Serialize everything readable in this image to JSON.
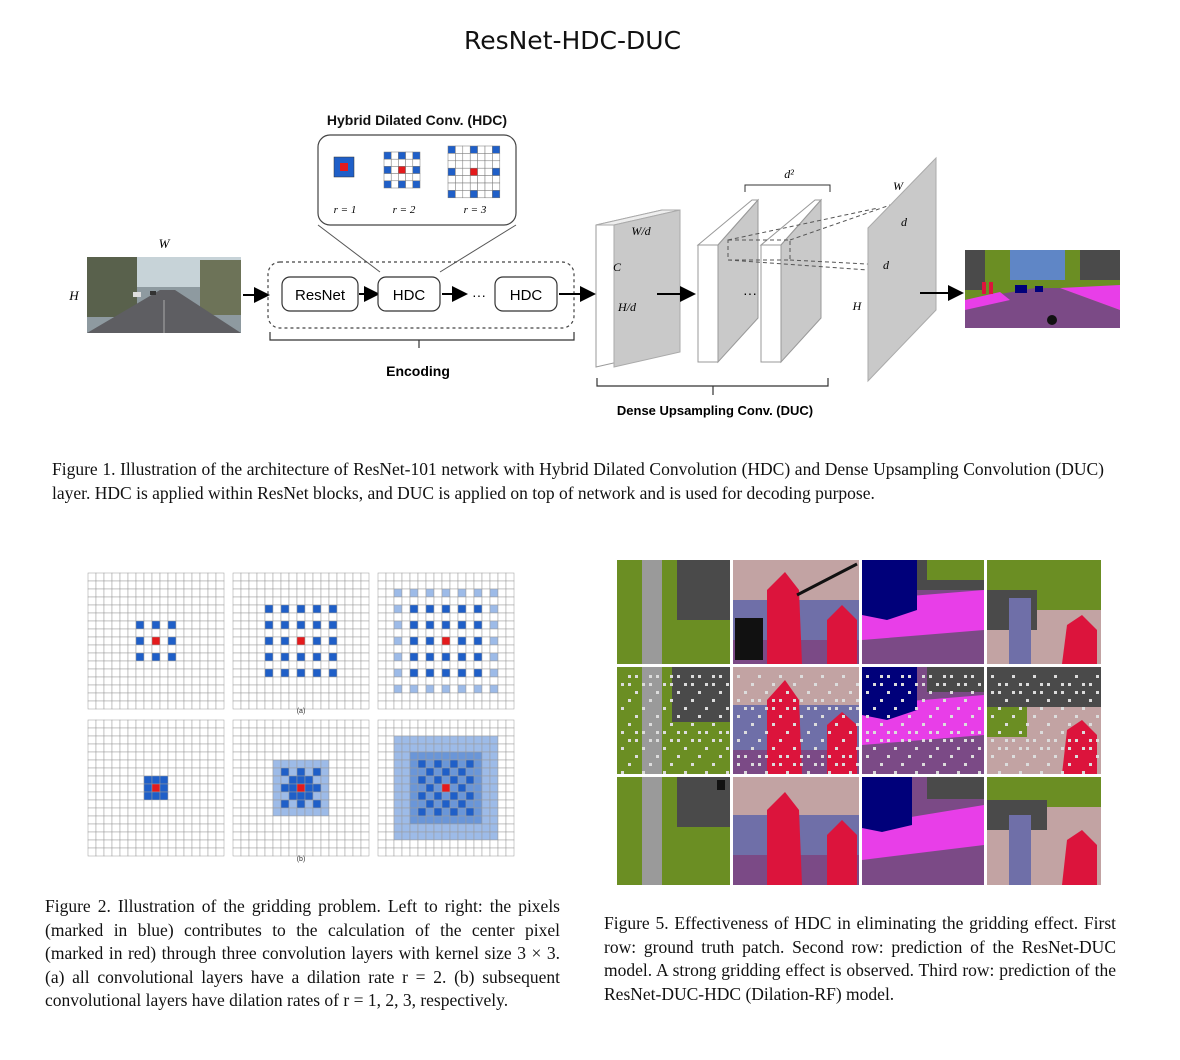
{
  "page_title": "ResNet-HDC-DUC",
  "figure1": {
    "hdc_title": "Hybrid Dilated Conv. (HDC)",
    "rates": [
      "r = 1",
      "r = 2",
      "r = 3"
    ],
    "input_width_label": "W",
    "input_height_label": "H",
    "blocks": [
      "ResNet",
      "HDC",
      "HDC"
    ],
    "ellipsis": "···",
    "encoding_label": "Encoding",
    "duc_label": "Dense Upsampling Conv. (DUC)",
    "feature_labels": {
      "width": "W/d",
      "channels": "C",
      "height": "H/d"
    },
    "d2_label": "d²",
    "output_labels": {
      "width": "W",
      "height": "H",
      "d1": "d",
      "d2": "d"
    },
    "stack_ellipsis": "···",
    "caption": "Figure 1. Illustration of the architecture of ResNet-101 network with Hybrid Dilated Convolution (HDC) and Dense Upsampling Convolution (DUC) layer. HDC is applied within ResNet blocks, and DUC is applied on top of network and is used for decoding purpose."
  },
  "figure2": {
    "sub_a": "(a)",
    "sub_b": "(b)",
    "caption": "Figure 2. Illustration of the gridding problem. Left to right: the pixels (marked in blue) contributes to the calculation of the center pixel (marked in red) through three convolution layers with kernel size 3 × 3. (a) all convolutional layers have a dilation rate r = 2. (b) subsequent convolutional layers have dilation rates of r = 1, 2, 3, respectively."
  },
  "figure5": {
    "caption": "Figure 5. Effectiveness of HDC in eliminating the gridding effect. First row: ground truth patch. Second row: prediction of the ResNet-DUC model. A strong gridding effect is observed. Third row: prediction of the ResNet-DUC-HDC (Dilation-RF) model."
  },
  "colors": {
    "blue": "#1f5fc8",
    "light_blue": "#9dbbe8",
    "red": "#e41a1c",
    "road": "#7b4a86",
    "vegetation": "#6b8e23",
    "building": "#4a4a4a",
    "sidewalk": "#e83ee8",
    "person": "#dc143c",
    "car": "#00007a",
    "pole": "#9a9a9a",
    "wall": "#c2a3a3",
    "terrain": "#6f6fa8"
  }
}
